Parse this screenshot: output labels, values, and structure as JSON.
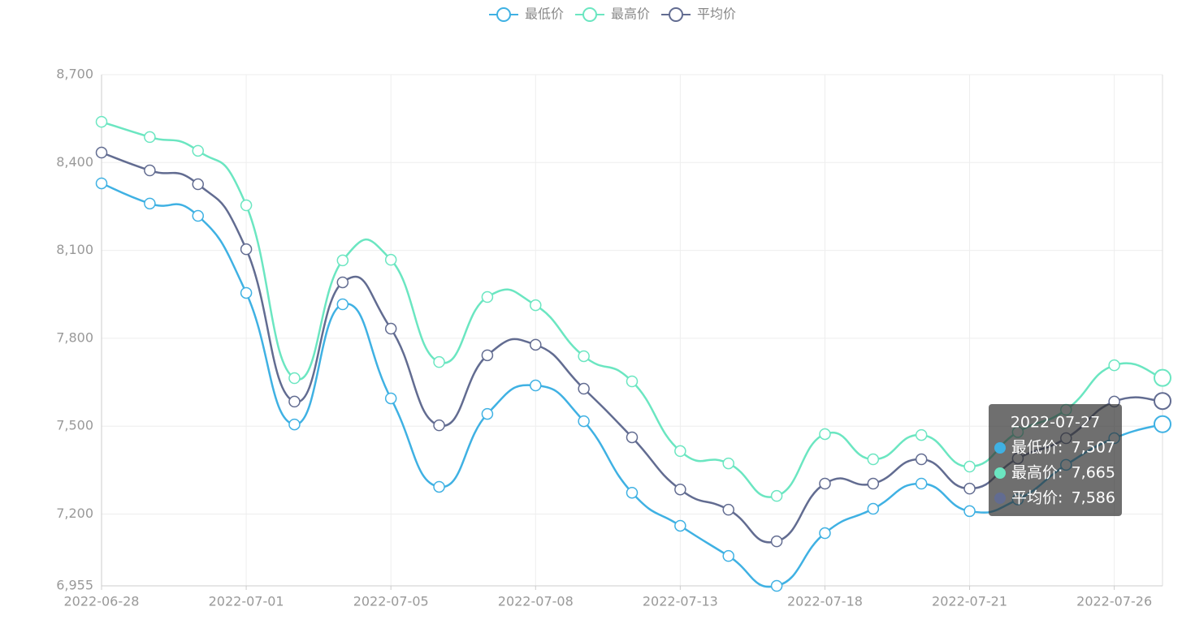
{
  "chart_data": {
    "type": "line",
    "categories": [
      "2022-06-28",
      null,
      null,
      "2022-07-01",
      null,
      null,
      "2022-07-05",
      null,
      null,
      "2022-07-08",
      null,
      null,
      "2022-07-13",
      null,
      null,
      "2022-07-18",
      null,
      null,
      "2022-07-21",
      null,
      null,
      "2022-07-26",
      "2022-07-27"
    ],
    "series": [
      {
        "name": "最低价",
        "color": "#3fb1e3",
        "values": [
          8329,
          8260,
          8218,
          7955,
          7506,
          7916,
          7595,
          7293,
          7542,
          7639,
          7517,
          7273,
          7160,
          7057,
          6955,
          7135,
          7218,
          7304,
          7210,
          7250,
          7368,
          7459,
          7507
        ],
        "value_labels": [
          null,
          null,
          null,
          null,
          null,
          null,
          null,
          null,
          null,
          null,
          null,
          null,
          null,
          null,
          null,
          null,
          null,
          null,
          null,
          null,
          null,
          null,
          "7,507"
        ]
      },
      {
        "name": "最高价",
        "color": "#6be6c1",
        "values": [
          8539,
          8487,
          8440,
          8254,
          7664,
          8066,
          8068,
          7719,
          7941,
          7913,
          7739,
          7653,
          7415,
          7373,
          7262,
          7473,
          7387,
          7470,
          7362,
          7480,
          7556,
          7708,
          7665
        ],
        "value_labels": [
          null,
          null,
          null,
          null,
          null,
          null,
          null,
          null,
          null,
          null,
          null,
          null,
          null,
          null,
          null,
          null,
          null,
          null,
          null,
          null,
          null,
          null,
          "7,665"
        ]
      },
      {
        "name": "平均价",
        "color": "#626c91",
        "values": [
          8434,
          8373,
          8326,
          8104,
          7584,
          7991,
          7833,
          7503,
          7742,
          7778,
          7628,
          7462,
          7284,
          7215,
          7107,
          7304,
          7304,
          7387,
          7287,
          7390,
          7459,
          7584,
          7586
        ],
        "value_labels": [
          null,
          null,
          null,
          null,
          null,
          null,
          null,
          null,
          null,
          null,
          null,
          null,
          null,
          null,
          null,
          null,
          null,
          null,
          null,
          null,
          null,
          null,
          "7,586"
        ]
      }
    ],
    "ylim": [
      6955,
      8700
    ],
    "yticks": [
      {
        "value": 6955,
        "label": "6,955"
      },
      {
        "value": 7200,
        "label": "7,200"
      },
      {
        "value": 7500,
        "label": "7,500"
      },
      {
        "value": 7800,
        "label": "7,800"
      },
      {
        "value": 8100,
        "label": "8,100"
      },
      {
        "value": 8400,
        "label": "8,400"
      },
      {
        "value": 8700,
        "label": "8,700"
      }
    ],
    "grid": true,
    "legend": "top",
    "smooth": true
  }
}
